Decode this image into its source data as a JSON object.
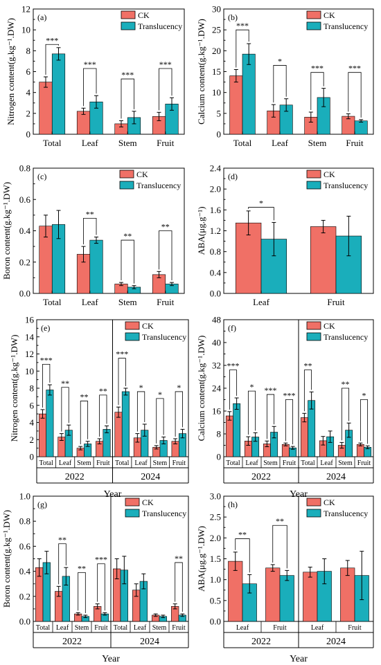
{
  "colors": {
    "ck": "#f07066",
    "tr": "#1aaebb",
    "axis": "#000000",
    "err": "#000000"
  },
  "legend_labels": {
    "ck": "CK",
    "tr": "Translucency"
  },
  "chart_data": [
    {
      "id": "a",
      "type": "bar",
      "panel_label": "(a)",
      "ylabel": "Nitrogen content(g.kg⁻¹.DW)",
      "ylim": [
        0,
        12
      ],
      "yticks": [
        0,
        2,
        4,
        6,
        8,
        10,
        12
      ],
      "categories": [
        "Total",
        "Leaf",
        "Stem",
        "Fruit"
      ],
      "series": [
        {
          "name": "CK",
          "values": [
            5.0,
            2.2,
            1.0,
            1.7
          ],
          "errors": [
            0.5,
            0.3,
            0.3,
            0.4
          ]
        },
        {
          "name": "Translucency",
          "values": [
            7.7,
            3.1,
            1.6,
            2.9
          ],
          "errors": [
            0.6,
            0.6,
            0.6,
            0.6
          ]
        }
      ],
      "sig": [
        {
          "cat": 0,
          "text": "***",
          "y": 8.6
        },
        {
          "cat": 1,
          "text": "***",
          "y": 6.3
        },
        {
          "cat": 2,
          "text": "***",
          "y": 5.3
        },
        {
          "cat": 3,
          "text": "***",
          "y": 6.3
        }
      ]
    },
    {
      "id": "b",
      "type": "bar",
      "panel_label": "(b)",
      "ylabel": "Calcium content(g.kg⁻¹.DW)",
      "ylim": [
        0,
        30
      ],
      "yticks": [
        0,
        5,
        10,
        15,
        20,
        25,
        30
      ],
      "categories": [
        "Total",
        "Leaf",
        "Stem",
        "Fruit"
      ],
      "series": [
        {
          "name": "CK",
          "values": [
            14.0,
            5.6,
            4.1,
            4.3
          ],
          "errors": [
            1.5,
            1.5,
            1.2,
            0.6
          ]
        },
        {
          "name": "Translucency",
          "values": [
            19.2,
            7.0,
            8.8,
            3.2
          ],
          "errors": [
            2.5,
            1.5,
            2.2,
            0.3
          ]
        }
      ],
      "sig": [
        {
          "cat": 0,
          "text": "***",
          "y": 25.0
        },
        {
          "cat": 1,
          "text": "*",
          "y": 16.5
        },
        {
          "cat": 2,
          "text": "***",
          "y": 14.8
        },
        {
          "cat": 3,
          "text": "***",
          "y": 14.8
        }
      ]
    },
    {
      "id": "c",
      "type": "bar",
      "panel_label": "(c)",
      "ylabel": "Boron content(g.kg⁻¹.DW)",
      "ylim": [
        0,
        0.8
      ],
      "yticks": [
        0.0,
        0.2,
        0.4,
        0.6,
        0.8
      ],
      "categories": [
        "Total",
        "Leaf",
        "Stem",
        "Fruit"
      ],
      "series": [
        {
          "name": "CK",
          "values": [
            0.43,
            0.25,
            0.06,
            0.12
          ],
          "errors": [
            0.07,
            0.05,
            0.01,
            0.02
          ]
        },
        {
          "name": "Translucency",
          "values": [
            0.44,
            0.34,
            0.04,
            0.06
          ],
          "errors": [
            0.09,
            0.02,
            0.01,
            0.01
          ]
        }
      ],
      "sig": [
        {
          "cat": 1,
          "text": "**",
          "y": 0.48
        },
        {
          "cat": 2,
          "text": "**",
          "y": 0.34
        },
        {
          "cat": 3,
          "text": "**",
          "y": 0.4
        }
      ]
    },
    {
      "id": "d",
      "type": "bar",
      "panel_label": "(d)",
      "ylabel": "ABA(μg.g⁻¹)",
      "ylim": [
        0,
        2.4
      ],
      "yticks": [
        0.0,
        0.4,
        0.8,
        1.2,
        1.6,
        2.0,
        2.4
      ],
      "categories": [
        "Leaf",
        "Fruit"
      ],
      "series": [
        {
          "name": "CK",
          "values": [
            1.35,
            1.28
          ],
          "errors": [
            0.23,
            0.12
          ]
        },
        {
          "name": "Translucency",
          "values": [
            1.04,
            1.1
          ],
          "errors": [
            0.32,
            0.38
          ]
        }
      ],
      "sig": [
        {
          "cat": 0,
          "text": "*",
          "y": 1.65
        }
      ]
    },
    {
      "id": "e",
      "type": "bar",
      "panel_label": "(e)",
      "ylabel": "Nitrogen content(g.kg⁻¹.DW)",
      "xlabel": "Year",
      "ylim": [
        0,
        16
      ],
      "yticks": [
        0,
        2,
        4,
        6,
        8,
        10,
        12,
        14,
        16
      ],
      "groups": [
        "2022",
        "2024"
      ],
      "categories": [
        "Total",
        "Leaf",
        "Stem",
        "Fruit"
      ],
      "series": [
        {
          "name": "CK",
          "values": [
            [
              5.0,
              2.3,
              1.0,
              1.8
            ],
            [
              5.2,
              2.2,
              1.1,
              1.8
            ]
          ],
          "errors": [
            [
              0.5,
              0.4,
              0.2,
              0.3
            ],
            [
              0.6,
              0.5,
              0.2,
              0.3
            ]
          ]
        },
        {
          "name": "Translucency",
          "values": [
            [
              7.8,
              3.1,
              1.5,
              3.2
            ],
            [
              7.6,
              3.1,
              1.9,
              2.7
            ]
          ],
          "errors": [
            [
              0.6,
              0.6,
              0.3,
              0.4
            ],
            [
              0.4,
              0.7,
              0.4,
              0.5
            ]
          ]
        }
      ],
      "sig": [
        {
          "group": 0,
          "cat": 0,
          "text": "***",
          "y": 10.8
        },
        {
          "group": 0,
          "cat": 1,
          "text": "**",
          "y": 8.1
        },
        {
          "group": 0,
          "cat": 2,
          "text": "**",
          "y": 6.5
        },
        {
          "group": 0,
          "cat": 3,
          "text": "**",
          "y": 7.2
        },
        {
          "group": 1,
          "cat": 0,
          "text": "***",
          "y": 11.5
        },
        {
          "group": 1,
          "cat": 1,
          "text": "*",
          "y": 7.6
        },
        {
          "group": 1,
          "cat": 2,
          "text": "*",
          "y": 6.8
        },
        {
          "group": 1,
          "cat": 3,
          "text": "*",
          "y": 7.6
        }
      ]
    },
    {
      "id": "f",
      "type": "bar",
      "panel_label": "(f)",
      "ylabel": "Calcium content(g.kg⁻¹.DW)",
      "xlabel": "Year",
      "ylim": [
        0,
        48
      ],
      "yticks": [
        0,
        8,
        16,
        24,
        32,
        40,
        48
      ],
      "groups": [
        "2022",
        "2024"
      ],
      "categories": [
        "Total",
        "Leaf",
        "Stem",
        "Fruit"
      ],
      "series": [
        {
          "name": "CK",
          "values": [
            [
              14.3,
              5.5,
              4.5,
              4.3
            ],
            [
              13.7,
              5.6,
              4.0,
              4.3
            ]
          ],
          "errors": [
            [
              1.5,
              1.5,
              1.0,
              0.5
            ],
            [
              1.5,
              1.5,
              1.0,
              0.5
            ]
          ]
        },
        {
          "name": "Translucency",
          "values": [
            [
              18.6,
              6.9,
              8.6,
              3.1
            ],
            [
              19.7,
              7.0,
              9.3,
              3.3
            ]
          ],
          "errors": [
            [
              2.0,
              1.5,
              2.0,
              0.5
            ],
            [
              3.0,
              2.0,
              2.5,
              0.5
            ]
          ]
        }
      ],
      "sig": [
        {
          "group": 0,
          "cat": 0,
          "text": "***",
          "y": 30.4
        },
        {
          "group": 0,
          "cat": 1,
          "text": "*",
          "y": 23.0
        },
        {
          "group": 0,
          "cat": 2,
          "text": "***",
          "y": 21.8
        },
        {
          "group": 0,
          "cat": 3,
          "text": "***",
          "y": 20.0
        },
        {
          "group": 1,
          "cat": 0,
          "text": "**",
          "y": 30.4
        },
        {
          "group": 1,
          "cat": 2,
          "text": "**",
          "y": 24.0
        },
        {
          "group": 1,
          "cat": 3,
          "text": "*",
          "y": 20.0
        }
      ]
    },
    {
      "id": "g",
      "type": "bar",
      "panel_label": "(g)",
      "ylabel": "Boron content(g.kg⁻¹.DW)",
      "xlabel": "Year",
      "ylim": [
        0,
        1.0
      ],
      "yticks": [
        0.0,
        0.2,
        0.4,
        0.6,
        0.8,
        1.0
      ],
      "groups": [
        "2022",
        "2024"
      ],
      "categories": [
        "Total",
        "Leaf",
        "Stem",
        "Fruit"
      ],
      "series": [
        {
          "name": "CK",
          "values": [
            [
              0.43,
              0.24,
              0.06,
              0.12
            ],
            [
              0.42,
              0.25,
              0.05,
              0.12
            ]
          ],
          "errors": [
            [
              0.07,
              0.04,
              0.01,
              0.02
            ],
            [
              0.08,
              0.05,
              0.01,
              0.02
            ]
          ]
        },
        {
          "name": "Translucency",
          "values": [
            [
              0.47,
              0.36,
              0.04,
              0.06
            ],
            [
              0.41,
              0.32,
              0.04,
              0.05
            ]
          ],
          "errors": [
            [
              0.09,
              0.07,
              0.01,
              0.01
            ],
            [
              0.11,
              0.06,
              0.01,
              0.01
            ]
          ]
        }
      ],
      "sig": [
        {
          "group": 0,
          "cat": 1,
          "text": "**",
          "y": 0.62
        },
        {
          "group": 0,
          "cat": 2,
          "text": "**",
          "y": 0.39
        },
        {
          "group": 0,
          "cat": 3,
          "text": "***",
          "y": 0.46
        },
        {
          "group": 1,
          "cat": 3,
          "text": "**",
          "y": 0.47
        }
      ]
    },
    {
      "id": "h",
      "type": "bar",
      "panel_label": "(h)",
      "ylabel": "ABA(μg.g⁻¹.DW)",
      "xlabel": "Year",
      "ylim": [
        0,
        3.0
      ],
      "yticks": [
        0.0,
        0.5,
        1.0,
        1.5,
        2.0,
        2.5,
        3.0
      ],
      "groups": [
        "2022",
        "2024"
      ],
      "categories": [
        "Leaf",
        "Fruit"
      ],
      "series": [
        {
          "name": "CK",
          "values": [
            [
              1.44,
              1.28
            ],
            [
              1.18,
              1.28
            ]
          ],
          "errors": [
            [
              0.22,
              0.08
            ],
            [
              0.12,
              0.18
            ]
          ]
        },
        {
          "name": "Translucency",
          "values": [
            [
              0.9,
              1.1
            ],
            [
              1.2,
              1.1
            ]
          ],
          "errors": [
            [
              0.22,
              0.12
            ],
            [
              0.3,
              0.58
            ]
          ]
        }
      ],
      "sig": [
        {
          "group": 0,
          "cat": 0,
          "text": "**",
          "y": 1.98
        },
        {
          "group": 0,
          "cat": 1,
          "text": "**",
          "y": 2.3
        }
      ]
    }
  ]
}
